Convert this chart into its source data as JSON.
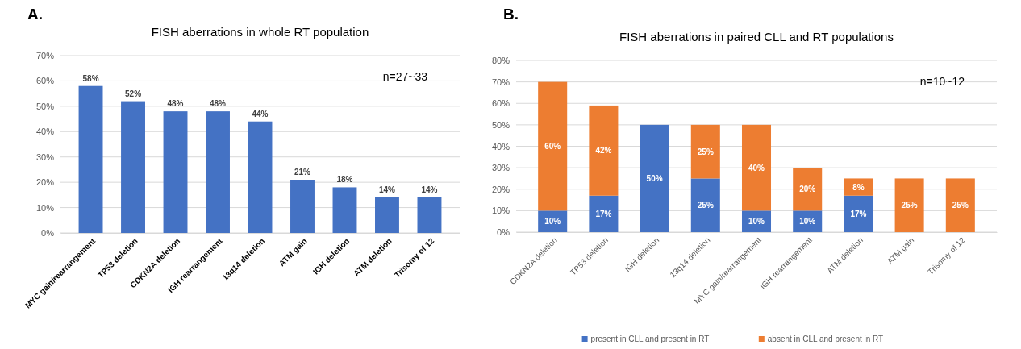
{
  "chart_data": [
    {
      "type": "bar",
      "title": "FISH aberrations in whole RT population",
      "annotations": [
        "A.",
        "n=27~33"
      ],
      "categories": [
        "MYC gain/rearrangement",
        "TP53 deletion",
        "CDKN2A deletion",
        "IGH rearrangement",
        "13q14 deletion",
        "ATM gain",
        "IGH deletion",
        "ATM deletion",
        "Trisomy of 12"
      ],
      "values": [
        58,
        52,
        48,
        48,
        44,
        21,
        18,
        14,
        14
      ],
      "color": "#4472c4",
      "value_labels": [
        "58%",
        "52%",
        "48%",
        "48%",
        "44%",
        "21%",
        "18%",
        "14%",
        "14%"
      ],
      "ylim": [
        0,
        70
      ],
      "yticks": [
        {
          "value": 0,
          "label": "0%"
        },
        {
          "value": 10,
          "label": "10%"
        },
        {
          "value": 20,
          "label": "20%"
        },
        {
          "value": 30,
          "label": "30%"
        },
        {
          "value": 40,
          "label": "40%"
        },
        {
          "value": 50,
          "label": "50%"
        },
        {
          "value": 60,
          "label": "60%"
        },
        {
          "value": 70,
          "label": "70%"
        }
      ],
      "grid": "y"
    },
    {
      "type": "bar",
      "title": "FISH aberrations in paired CLL and RT populations",
      "annotations": [
        "B.",
        "n=10~12"
      ],
      "stacked": true,
      "legend": "bottom",
      "categories": [
        "CDKN2A deletion",
        "TP53 deletion",
        "IGH deletion",
        "13q14 deletion",
        "MYC gain/rearrangement",
        "IGH rearrangement",
        "ATM deletion",
        "ATM gain",
        "Trisomy of 12"
      ],
      "series": [
        {
          "name": "present in CLL and present in RT",
          "color": "#4472c4",
          "values": [
            10,
            17,
            50,
            25,
            10,
            10,
            17,
            0,
            0
          ],
          "value_labels": [
            "10%",
            "17%",
            "50%",
            "25%",
            "10%",
            "10%",
            "17%",
            null,
            null
          ]
        },
        {
          "name": "absent in CLL and present in RT",
          "color": "#ed7d31",
          "values": [
            60,
            42,
            0,
            25,
            40,
            20,
            8,
            25,
            25
          ],
          "value_labels": [
            "60%",
            "42%",
            null,
            "25%",
            "40%",
            "20%",
            "8%",
            "25%",
            "25%"
          ]
        }
      ],
      "ylim": [
        0,
        80
      ],
      "yticks": [
        {
          "value": 0,
          "label": "0%"
        },
        {
          "value": 10,
          "label": "10%"
        },
        {
          "value": 20,
          "label": "20%"
        },
        {
          "value": 30,
          "label": "30%"
        },
        {
          "value": 40,
          "label": "40%"
        },
        {
          "value": 50,
          "label": "50%"
        },
        {
          "value": 60,
          "label": "60%"
        },
        {
          "value": 70,
          "label": "70%"
        },
        {
          "value": 80,
          "label": "80%"
        }
      ],
      "grid": "y"
    }
  ]
}
